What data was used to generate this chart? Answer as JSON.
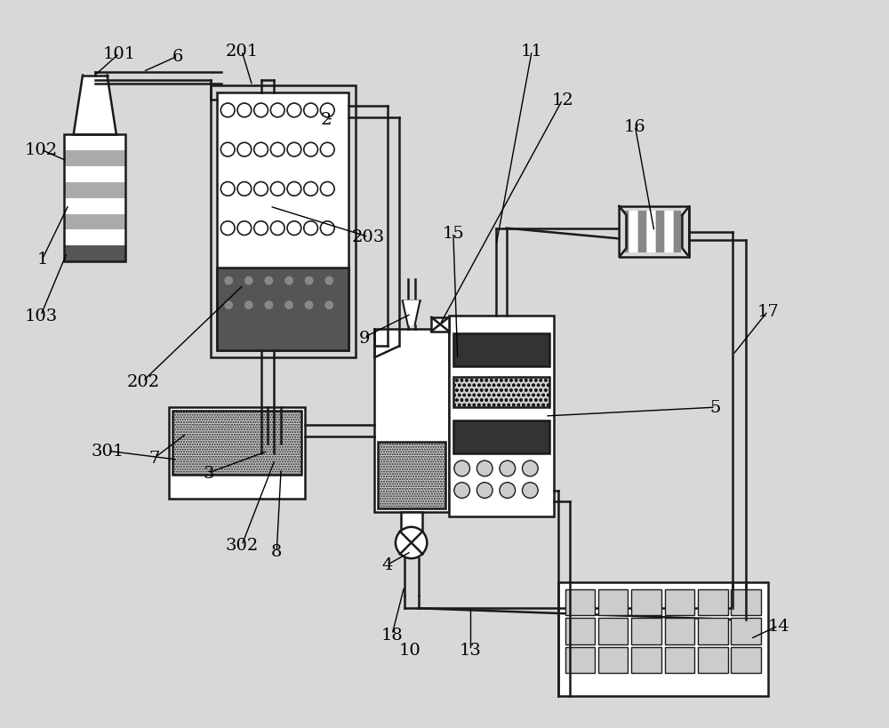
{
  "bg_color": "#d8d8d8",
  "line_color": "#1a1a1a",
  "font_size": 14,
  "fig_w": 10.0,
  "fig_h": 8.2
}
